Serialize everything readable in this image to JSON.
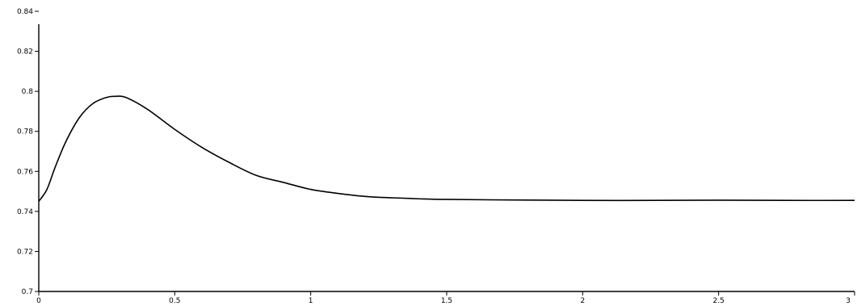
{
  "chart_data": {
    "type": "line",
    "title": "",
    "xlabel": "",
    "ylabel": "",
    "xlim": [
      0,
      3
    ],
    "ylim": [
      0.7,
      0.84
    ],
    "grid": false,
    "legend": "none",
    "line_color": "#000000",
    "x_ticks": [
      {
        "value": 0,
        "label": "0"
      },
      {
        "value": 0.5,
        "label": "0.5"
      },
      {
        "value": 1,
        "label": "1"
      },
      {
        "value": 1.5,
        "label": "1.5"
      },
      {
        "value": 2,
        "label": "2"
      },
      {
        "value": 2.5,
        "label": "2.5"
      },
      {
        "value": 3,
        "label": "3"
      }
    ],
    "y_ticks": [
      {
        "value": 0.7,
        "label": "0.7"
      },
      {
        "value": 0.72,
        "label": "0.72"
      },
      {
        "value": 0.74,
        "label": "0.74"
      },
      {
        "value": 0.76,
        "label": "0.76"
      },
      {
        "value": 0.78,
        "label": "0.78"
      },
      {
        "value": 0.8,
        "label": "0.8"
      },
      {
        "value": 0.82,
        "label": "0.82"
      },
      {
        "value": 0.84,
        "label": "0.84"
      }
    ],
    "series": [
      {
        "x": [
          0,
          0.03,
          0.06,
          0.1,
          0.15,
          0.2,
          0.25,
          0.28,
          0.32,
          0.4,
          0.5,
          0.6,
          0.7,
          0.8,
          0.9,
          1.0,
          1.1,
          1.2,
          1.3,
          1.4,
          1.5,
          1.75,
          2.0,
          2.25,
          2.5,
          2.75,
          3.0
        ],
        "y": [
          0.745,
          0.751,
          0.762,
          0.775,
          0.787,
          0.794,
          0.797,
          0.7975,
          0.797,
          0.791,
          0.781,
          0.772,
          0.7645,
          0.758,
          0.7545,
          0.751,
          0.749,
          0.7475,
          0.7468,
          0.7463,
          0.746,
          0.7457,
          0.7455,
          0.7455,
          0.7456,
          0.7455,
          0.7455
        ]
      }
    ]
  }
}
